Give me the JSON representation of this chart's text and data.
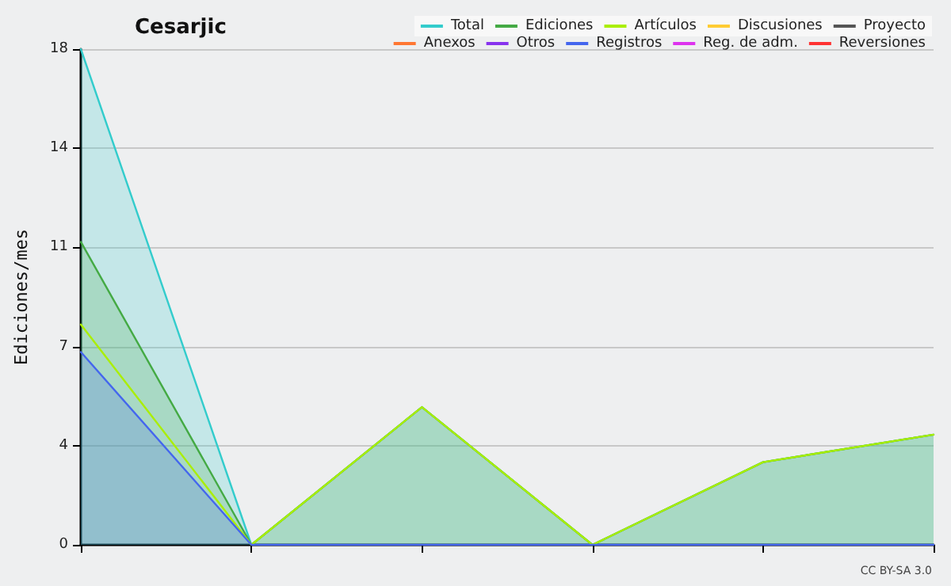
{
  "chart_data": {
    "type": "line",
    "title": "Cesarjic",
    "ylabel": "Ediciones/mes",
    "annotations": [
      "CC BY-SA 3.0"
    ],
    "categories": [
      null,
      null,
      null,
      null,
      null,
      null
    ],
    "ylim": [
      0,
      18
    ],
    "yticks": [
      0,
      {
        "value": 3.6,
        "label": "4"
      },
      {
        "value": 7.2,
        "label": "7"
      },
      {
        "value": 10.8,
        "label": "11"
      },
      {
        "value": 14.4,
        "label": "14"
      },
      18
    ],
    "grid": "y",
    "legend": "top right",
    "marker": "none",
    "series": [
      {
        "name": "Total",
        "type": "area",
        "color": "#33cccc",
        "values": [
          18,
          0,
          5,
          0,
          3,
          4
        ]
      },
      {
        "name": "Ediciones",
        "type": "area",
        "color": "#44aa44",
        "values": [
          11,
          0,
          5,
          0,
          3,
          4
        ]
      },
      {
        "name": "Artículos",
        "color": "#aaee00",
        "values": [
          8,
          0,
          5,
          0,
          3,
          4
        ]
      },
      {
        "name": "Discusiones",
        "color": "#ffcc33",
        "values": [
          null,
          null,
          null,
          null,
          null,
          null
        ]
      },
      {
        "name": "Proyecto",
        "color": "#555555",
        "values": [
          null,
          null,
          null,
          null,
          null,
          null
        ]
      },
      {
        "name": "Anexos",
        "color": "#ff7733",
        "values": [
          null,
          null,
          null,
          null,
          null,
          null
        ]
      },
      {
        "name": "Otros",
        "color": "#8833ee",
        "values": [
          null,
          null,
          null,
          null,
          null,
          null
        ]
      },
      {
        "name": "Registros",
        "type": "area",
        "color": "#4466ee",
        "values": [
          7,
          0,
          0,
          0,
          0,
          0
        ]
      },
      {
        "name": "Reg. de adm.",
        "color": "#dd33ee",
        "values": [
          null,
          null,
          null,
          null,
          null,
          null
        ]
      },
      {
        "name": "Reversiones",
        "color": "#ff3333",
        "values": [
          null,
          null,
          null,
          null,
          null,
          null
        ]
      }
    ]
  }
}
